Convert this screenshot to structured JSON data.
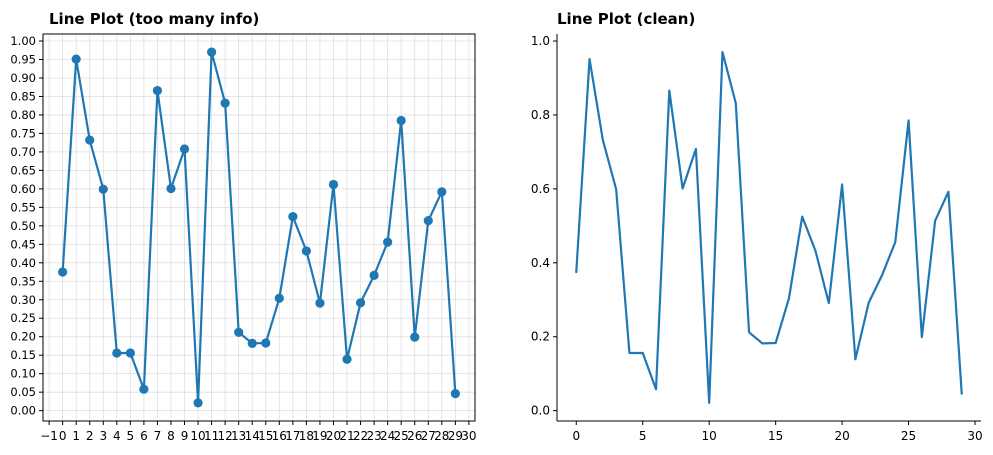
{
  "chart_data": [
    {
      "type": "line",
      "title": "Line Plot (too many info)",
      "xlabel": "",
      "ylabel": "",
      "x": [
        0,
        1,
        2,
        3,
        4,
        5,
        6,
        7,
        8,
        9,
        10,
        11,
        12,
        13,
        14,
        15,
        16,
        17,
        18,
        19,
        20,
        21,
        22,
        23,
        24,
        25,
        26,
        27,
        28,
        29
      ],
      "series": [
        {
          "values": [
            0.375,
            0.951,
            0.732,
            0.599,
            0.156,
            0.156,
            0.058,
            0.866,
            0.601,
            0.708,
            0.021,
            0.97,
            0.832,
            0.212,
            0.182,
            0.183,
            0.304,
            0.525,
            0.432,
            0.291,
            0.612,
            0.139,
            0.292,
            0.366,
            0.456,
            0.785,
            0.199,
            0.514,
            0.592,
            0.046
          ],
          "color": "#1f77b4",
          "markers": true
        }
      ],
      "xlim": [
        -1.45,
        30.45
      ],
      "ylim": [
        -0.028,
        1.019
      ],
      "xticks": [
        -1,
        0,
        1,
        2,
        3,
        4,
        5,
        6,
        7,
        8,
        9,
        10,
        11,
        12,
        13,
        14,
        15,
        16,
        17,
        18,
        19,
        20,
        21,
        22,
        23,
        24,
        25,
        26,
        27,
        28,
        29,
        30
      ],
      "xtick_labels": [
        "−1",
        "0",
        "1",
        "2",
        "3",
        "4",
        "5",
        "6",
        "7",
        "8",
        "9",
        "10",
        "11",
        "12",
        "13",
        "14",
        "15",
        "16",
        "17",
        "18",
        "19",
        "20",
        "21",
        "22",
        "23",
        "24",
        "25",
        "26",
        "27",
        "28",
        "29",
        "30"
      ],
      "yticks": [
        0.0,
        0.05,
        0.1,
        0.15,
        0.2,
        0.25,
        0.3,
        0.35,
        0.4,
        0.45,
        0.5,
        0.55,
        0.6,
        0.65,
        0.7,
        0.75,
        0.8,
        0.85,
        0.9,
        0.95,
        1.0
      ],
      "ytick_labels": [
        "0.00",
        "0.05",
        "0.10",
        "0.15",
        "0.20",
        "0.25",
        "0.30",
        "0.35",
        "0.40",
        "0.45",
        "0.50",
        "0.55",
        "0.60",
        "0.65",
        "0.70",
        "0.75",
        "0.80",
        "0.85",
        "0.90",
        "0.95",
        "1.00"
      ],
      "grid": true,
      "spines": "all"
    },
    {
      "type": "line",
      "title": "Line Plot (clean)",
      "xlabel": "",
      "ylabel": "",
      "x": [
        0,
        1,
        2,
        3,
        4,
        5,
        6,
        7,
        8,
        9,
        10,
        11,
        12,
        13,
        14,
        15,
        16,
        17,
        18,
        19,
        20,
        21,
        22,
        23,
        24,
        25,
        26,
        27,
        28,
        29
      ],
      "series": [
        {
          "values": [
            0.375,
            0.951,
            0.732,
            0.599,
            0.156,
            0.156,
            0.058,
            0.866,
            0.601,
            0.708,
            0.021,
            0.97,
            0.832,
            0.212,
            0.182,
            0.183,
            0.304,
            0.525,
            0.432,
            0.291,
            0.612,
            0.139,
            0.292,
            0.366,
            0.456,
            0.785,
            0.199,
            0.514,
            0.592,
            0.046
          ],
          "color": "#1f77b4",
          "markers": false
        }
      ],
      "xlim": [
        -1.45,
        30.45
      ],
      "ylim": [
        -0.028,
        1.019
      ],
      "xticks": [
        0,
        5,
        10,
        15,
        20,
        25,
        30
      ],
      "xtick_labels": [
        "0",
        "5",
        "10",
        "15",
        "20",
        "25",
        "30"
      ],
      "yticks": [
        0.0,
        0.2,
        0.4,
        0.6,
        0.8,
        1.0
      ],
      "ytick_labels": [
        "0.0",
        "0.2",
        "0.4",
        "0.6",
        "0.8",
        "1.0"
      ],
      "grid": false,
      "spines": "left-bottom"
    }
  ]
}
